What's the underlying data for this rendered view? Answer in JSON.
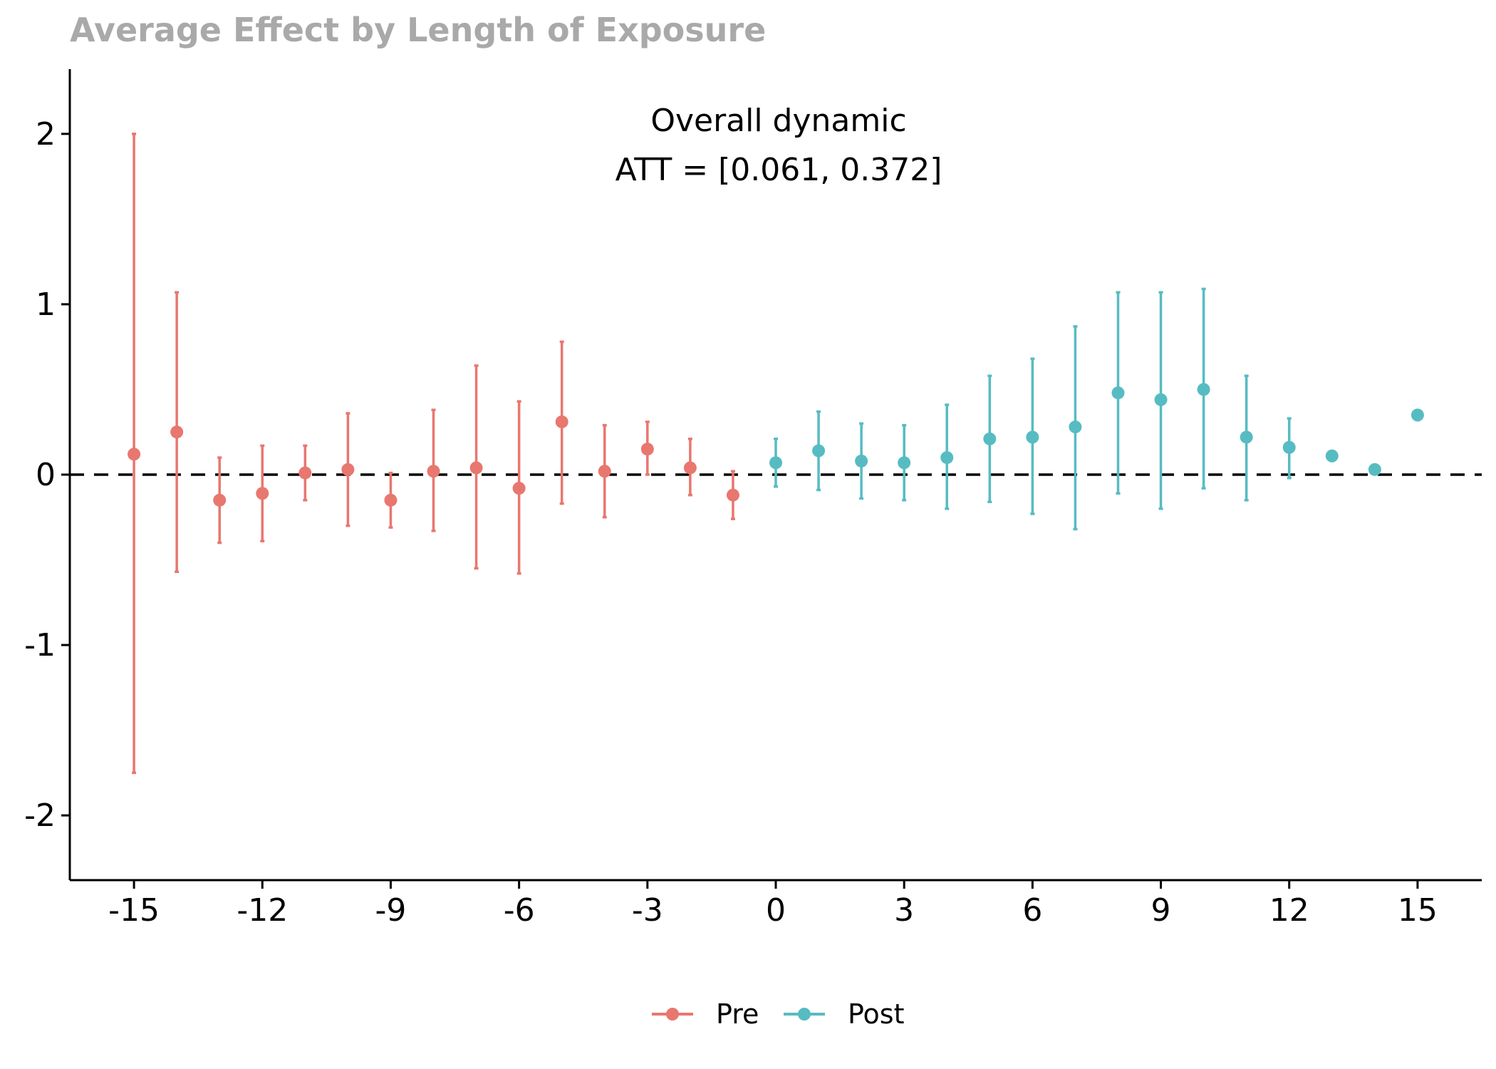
{
  "chart_data": {
    "type": "scatter",
    "title": "Average Effect by Length of Exposure",
    "xlabel": "",
    "ylabel": "",
    "xlim": [
      -16.5,
      16.5
    ],
    "ylim": [
      -2.38,
      2.38
    ],
    "xticks": [
      "-15",
      "-12",
      "-9",
      "-6",
      "-3",
      "0",
      "3",
      "6",
      "9",
      "12",
      "15"
    ],
    "yticks": [
      "2",
      "1",
      "0",
      "-1",
      "-2"
    ],
    "grid": false,
    "reference_line": {
      "y": 0,
      "style": "dashed"
    },
    "annotation": {
      "line1": "Overall dynamic",
      "line2": "ATT =  [0.061, 0.372]"
    },
    "legend": {
      "position": "bottom"
    },
    "colors": {
      "Pre": "#e8776f",
      "Post": "#56bcc2"
    },
    "series": [
      {
        "name": "Pre",
        "points": [
          {
            "x": -15,
            "y": 0.12,
            "lo": -1.75,
            "hi": 2.0
          },
          {
            "x": -14,
            "y": 0.25,
            "lo": -0.57,
            "hi": 1.07
          },
          {
            "x": -13,
            "y": -0.15,
            "lo": -0.4,
            "hi": 0.1
          },
          {
            "x": -12,
            "y": -0.11,
            "lo": -0.39,
            "hi": 0.17
          },
          {
            "x": -11,
            "y": 0.01,
            "lo": -0.15,
            "hi": 0.17
          },
          {
            "x": -10,
            "y": 0.03,
            "lo": -0.3,
            "hi": 0.36
          },
          {
            "x": -9,
            "y": -0.15,
            "lo": -0.31,
            "hi": 0.01
          },
          {
            "x": -8,
            "y": 0.02,
            "lo": -0.33,
            "hi": 0.38
          },
          {
            "x": -7,
            "y": 0.04,
            "lo": -0.55,
            "hi": 0.64
          },
          {
            "x": -6,
            "y": -0.08,
            "lo": -0.58,
            "hi": 0.43
          },
          {
            "x": -5,
            "y": 0.31,
            "lo": -0.17,
            "hi": 0.78
          },
          {
            "x": -4,
            "y": 0.02,
            "lo": -0.25,
            "hi": 0.29
          },
          {
            "x": -3,
            "y": 0.15,
            "lo": 0.0,
            "hi": 0.31
          },
          {
            "x": -2,
            "y": 0.04,
            "lo": -0.12,
            "hi": 0.21
          },
          {
            "x": -1,
            "y": -0.12,
            "lo": -0.26,
            "hi": 0.02
          }
        ]
      },
      {
        "name": "Post",
        "points": [
          {
            "x": 0,
            "y": 0.07,
            "lo": -0.07,
            "hi": 0.21
          },
          {
            "x": 1,
            "y": 0.14,
            "lo": -0.09,
            "hi": 0.37
          },
          {
            "x": 2,
            "y": 0.08,
            "lo": -0.14,
            "hi": 0.3
          },
          {
            "x": 3,
            "y": 0.07,
            "lo": -0.15,
            "hi": 0.29
          },
          {
            "x": 4,
            "y": 0.1,
            "lo": -0.2,
            "hi": 0.41
          },
          {
            "x": 5,
            "y": 0.21,
            "lo": -0.16,
            "hi": 0.58
          },
          {
            "x": 6,
            "y": 0.22,
            "lo": -0.23,
            "hi": 0.68
          },
          {
            "x": 7,
            "y": 0.28,
            "lo": -0.32,
            "hi": 0.87
          },
          {
            "x": 8,
            "y": 0.48,
            "lo": -0.11,
            "hi": 1.07
          },
          {
            "x": 9,
            "y": 0.44,
            "lo": -0.2,
            "hi": 1.07
          },
          {
            "x": 10,
            "y": 0.5,
            "lo": -0.08,
            "hi": 1.09
          },
          {
            "x": 11,
            "y": 0.22,
            "lo": -0.15,
            "hi": 0.58
          },
          {
            "x": 12,
            "y": 0.16,
            "lo": -0.02,
            "hi": 0.33
          },
          {
            "x": 13,
            "y": 0.11,
            "lo": 0.08,
            "hi": 0.13
          },
          {
            "x": 14,
            "y": 0.03,
            "lo": 0.01,
            "hi": 0.04
          },
          {
            "x": 15,
            "y": 0.35,
            "lo": 0.32,
            "hi": 0.37
          }
        ]
      }
    ]
  }
}
